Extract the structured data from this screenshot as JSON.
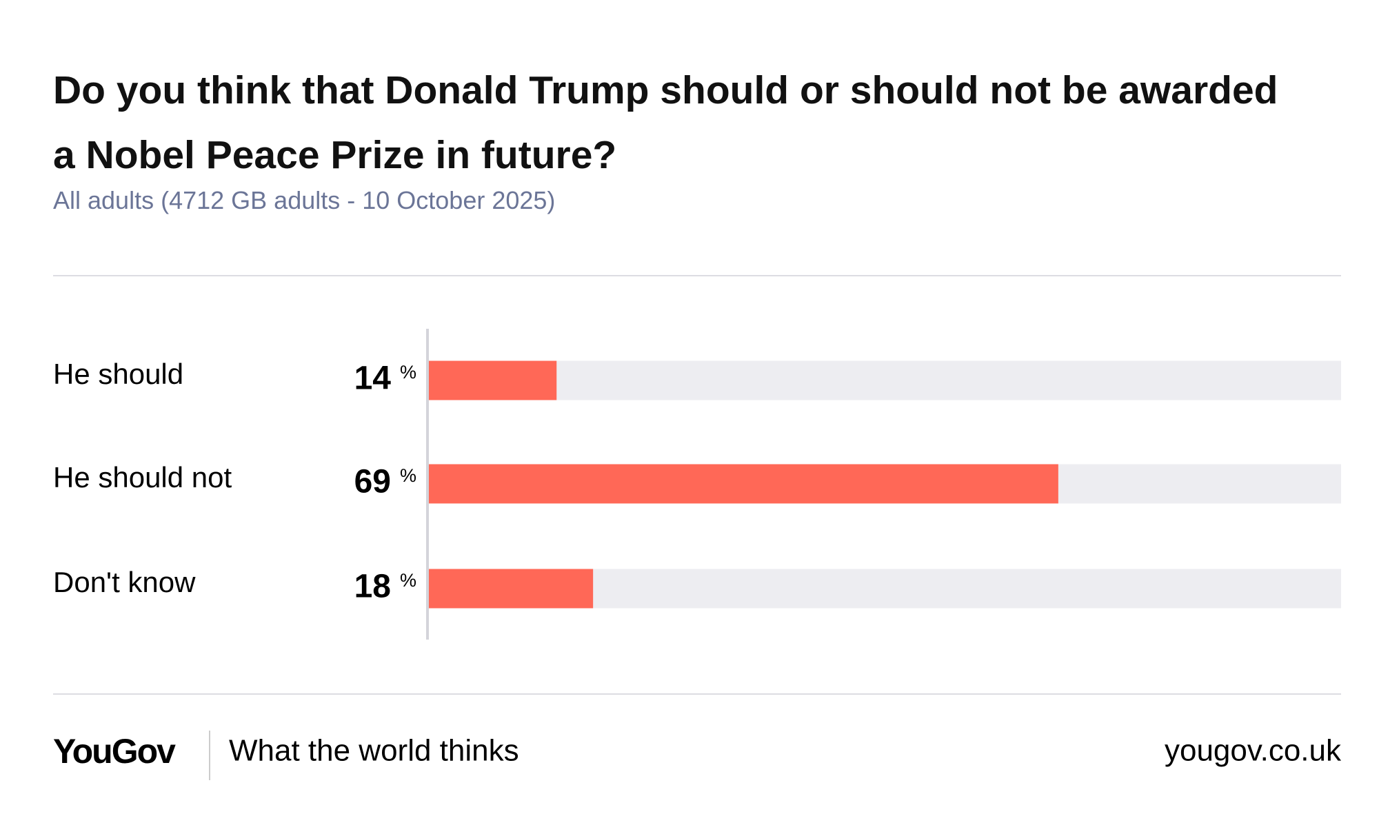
{
  "chart_data": {
    "type": "bar",
    "orientation": "horizontal",
    "title": "Do you think that Donald Trump should or should not be awarded a Nobel Peace Prize in future?",
    "subtitle": "All adults (4712 GB adults - 10 October 2025)",
    "categories": [
      "He should",
      "He should not",
      "Don't know"
    ],
    "values": [
      14,
      69,
      18
    ],
    "unit": "%",
    "color": "#ff6857",
    "track_color": "#ededf1",
    "xlim": [
      0,
      100
    ]
  },
  "footer": {
    "logo": "YouGov",
    "tagline": "What the world thinks",
    "url": "yougov.co.uk"
  }
}
